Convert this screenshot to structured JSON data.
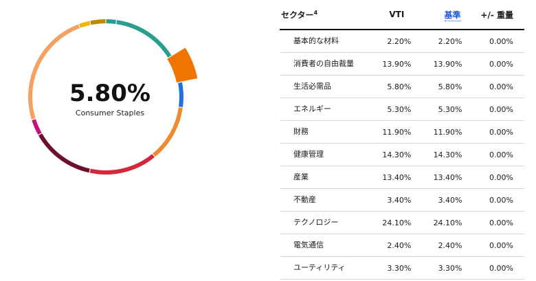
{
  "highlight": {
    "value": "5.80%",
    "label": "Consumer Staples"
  },
  "table": {
    "headers": {
      "sector": "セクター",
      "sector_note": "4",
      "vti": "VTI",
      "benchmark": "基準",
      "diff": "+/- 重量"
    },
    "rows": [
      {
        "sector": "基本的な材料",
        "vti": "2.20%",
        "benchmark": "2.20%",
        "diff": "0.00%",
        "color": "#2a9d8f",
        "value": 2.2
      },
      {
        "sector": "消費者の自由裁量",
        "vti": "13.90%",
        "benchmark": "13.90%",
        "diff": "0.00%",
        "color": "#2a9d8f",
        "value": 13.9
      },
      {
        "sector": "生活必需品",
        "vti": "5.80%",
        "benchmark": "5.80%",
        "diff": "0.00%",
        "color": "#f07400",
        "value": 5.8
      },
      {
        "sector": "エネルギー",
        "vti": "5.30%",
        "benchmark": "5.30%",
        "diff": "0.00%",
        "color": "#1c74d6",
        "value": 5.3
      },
      {
        "sector": "財務",
        "vti": "11.90%",
        "benchmark": "11.90%",
        "diff": "0.00%",
        "color": "#f08a30",
        "value": 11.9
      },
      {
        "sector": "健康管理",
        "vti": "14.30%",
        "benchmark": "14.30%",
        "diff": "0.00%",
        "color": "#d3283a",
        "value": 14.3
      },
      {
        "sector": "産業",
        "vti": "13.40%",
        "benchmark": "13.40%",
        "diff": "0.00%",
        "color": "#6e0f2e",
        "value": 13.4
      },
      {
        "sector": "不動産",
        "vti": "3.40%",
        "benchmark": "3.40%",
        "diff": "0.00%",
        "color": "#c4107e",
        "value": 3.4
      },
      {
        "sector": "テクノロジー",
        "vti": "24.10%",
        "benchmark": "24.10%",
        "diff": "0.00%",
        "color": "#f4a261",
        "value": 24.1
      },
      {
        "sector": "電気通信",
        "vti": "2.40%",
        "benchmark": "2.40%",
        "diff": "0.00%",
        "color": "#f2b705",
        "value": 2.4
      },
      {
        "sector": "ユーティリティ",
        "vti": "3.30%",
        "benchmark": "3.30%",
        "diff": "0.00%",
        "color": "#c08a00",
        "value": 3.3
      }
    ]
  },
  "chart_data": {
    "type": "pie",
    "categories": [
      "基本的な材料",
      "消費者の自由裁量",
      "生活必需品",
      "エネルギー",
      "財務",
      "健康管理",
      "産業",
      "不動産",
      "テクノロジー",
      "電気通信",
      "ユーティリティ"
    ],
    "values": [
      2.2,
      13.9,
      5.8,
      5.3,
      11.9,
      14.3,
      13.4,
      3.4,
      24.1,
      2.4,
      3.3
    ],
    "highlighted": "生活必需品"
  }
}
